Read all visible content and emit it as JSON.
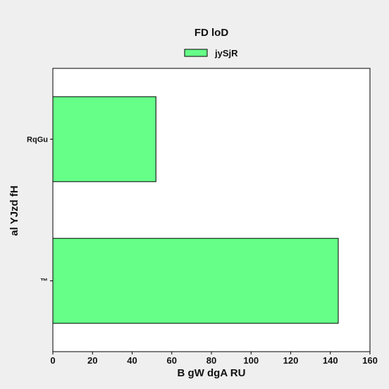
{
  "chart_data": {
    "type": "bar",
    "orientation": "horizontal",
    "title": "FD loD",
    "xlabel": "B gW dgA RU",
    "ylabel": "al YJzd fH",
    "categories": [
      "RqGu",
      "™"
    ],
    "series": [
      {
        "name": "jySjR",
        "values": [
          52,
          144
        ],
        "color": "#66ff88"
      }
    ],
    "xlim": [
      0,
      160
    ],
    "xticks": [
      0,
      20,
      40,
      60,
      80,
      100,
      120,
      140,
      160
    ],
    "grid": false,
    "legend_position": "top-center"
  }
}
